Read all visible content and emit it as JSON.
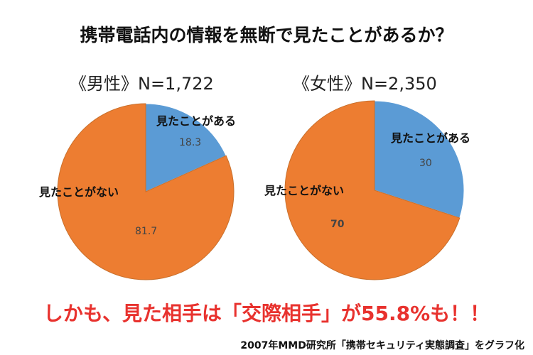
{
  "title": "携帯電話内の情報を無断で見たことがあるか？",
  "chart_data": [
    {
      "type": "pie",
      "title": "《男性》N=1,722",
      "categories": [
        "見たことがある",
        "見たことがない"
      ],
      "values": [
        18.3,
        81.7
      ],
      "value_labels": [
        "18.3",
        "81.7"
      ],
      "colors": [
        "#5b9bd5",
        "#ed7d31"
      ]
    },
    {
      "type": "pie",
      "title": "《女性》N=2,350",
      "categories": [
        "見たことがある",
        "見たことがない"
      ],
      "values": [
        30,
        70
      ],
      "value_labels": [
        "30",
        "70"
      ],
      "colors": [
        "#5b9bd5",
        "#ed7d31"
      ]
    }
  ],
  "note": "しかも、見た相手は「交際相手」が55.8%も！！",
  "source": "2007年MMD研究所「携帯セキュリティ実態調査」をグラフ化"
}
